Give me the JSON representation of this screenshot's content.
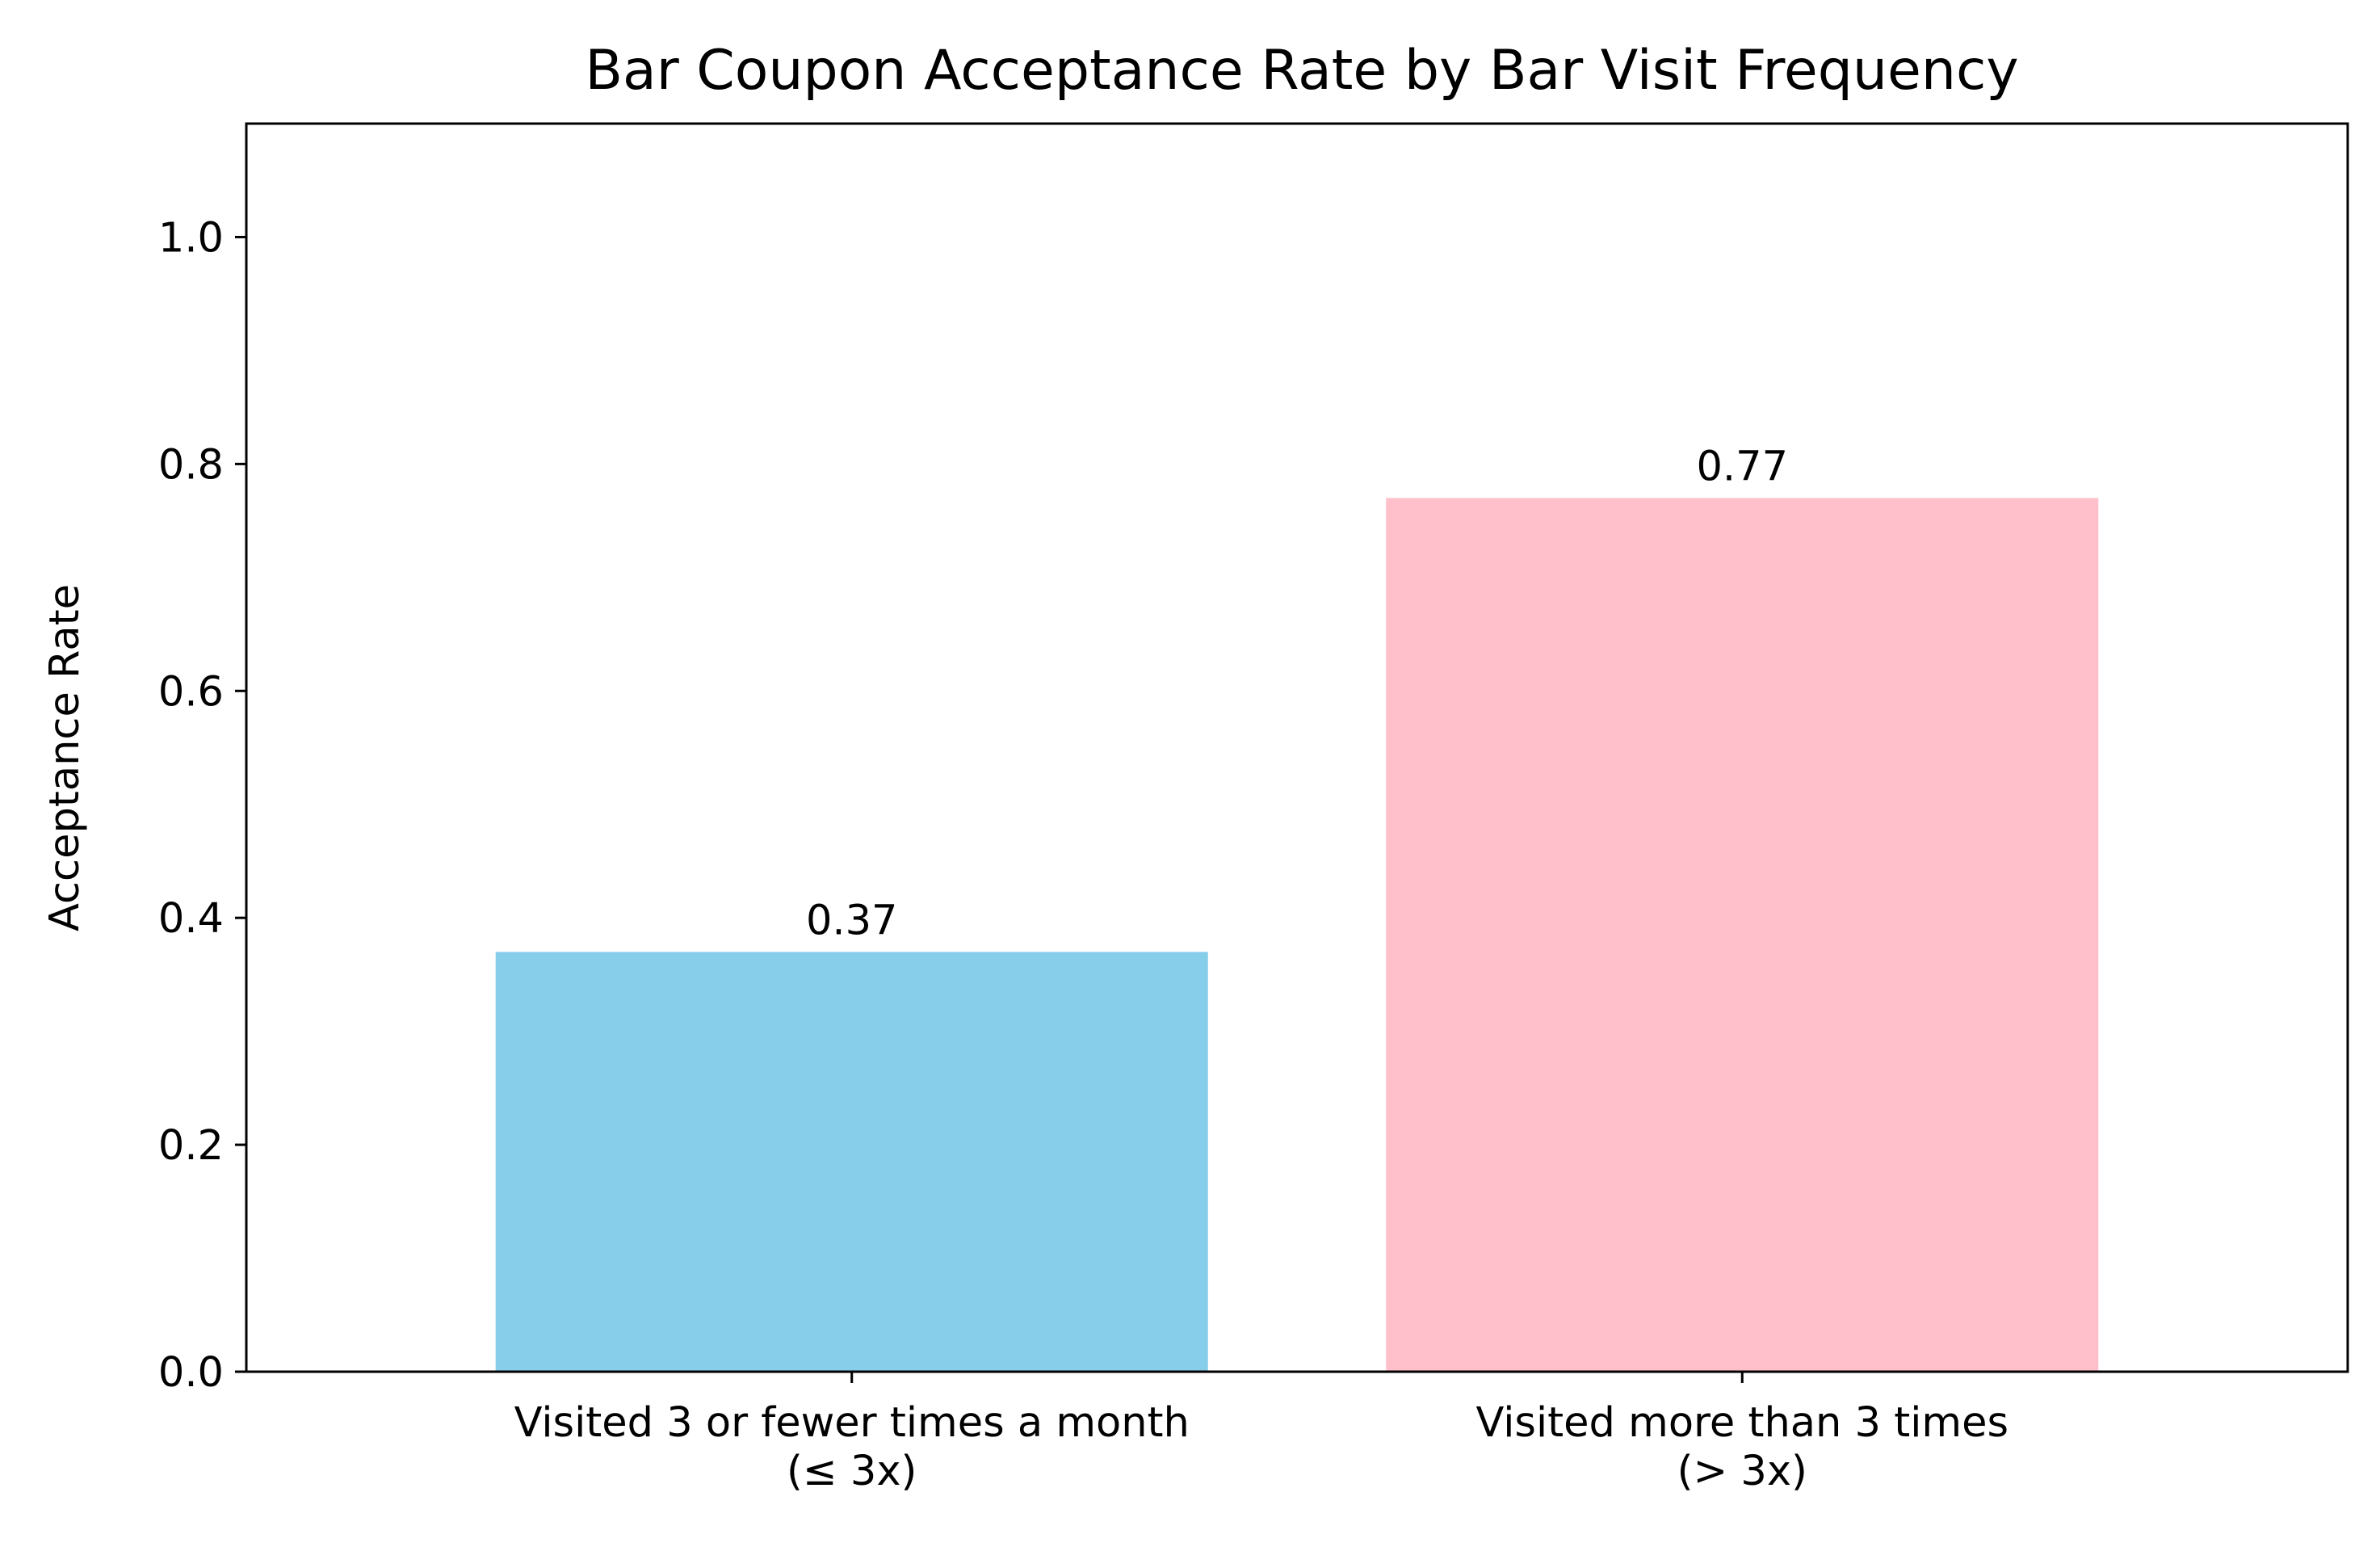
{
  "chart_data": {
    "type": "bar",
    "title": "Bar Coupon Acceptance Rate by Bar Visit Frequency",
    "xlabel": "",
    "ylabel": "Acceptance Rate",
    "ylim": [
      0,
      1.1
    ],
    "yticks": [
      0.0,
      0.2,
      0.4,
      0.6,
      0.8,
      1.0
    ],
    "ytick_labels": [
      "0.0",
      "0.2",
      "0.4",
      "0.6",
      "0.8",
      "1.0"
    ],
    "categories": [
      [
        "Visited 3 or fewer times a month",
        "(≤ 3x)"
      ],
      [
        "Visited more than 3 times",
        "(> 3x)"
      ]
    ],
    "values": [
      0.37,
      0.77
    ],
    "value_labels": [
      "0.37",
      "0.77"
    ],
    "bar_colors": [
      "#87ceeb",
      "#ffc0cb"
    ],
    "grid": false,
    "legend": "none"
  }
}
